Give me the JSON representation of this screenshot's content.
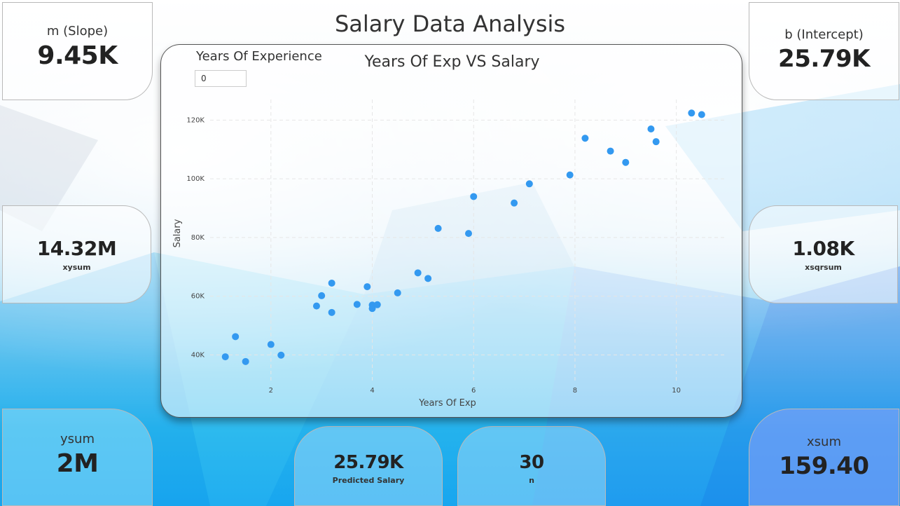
{
  "page": {
    "title": "Salary Data Analysis"
  },
  "cards": {
    "slope": {
      "label": "m (Slope)",
      "value": "9.45K"
    },
    "intercept": {
      "label": "b (Intercept)",
      "value": "25.79K"
    },
    "xysum": {
      "label": "xysum",
      "value": "14.32M"
    },
    "xsqrsum": {
      "label": "xsqrsum",
      "value": "1.08K"
    },
    "ysum": {
      "label": "ysum",
      "value": "2M"
    },
    "predicted": {
      "label": "Predicted Salary",
      "value": "25.79K"
    },
    "n": {
      "label": "n",
      "value": "30"
    },
    "xsum": {
      "label": "xsum",
      "value": "159.40"
    }
  },
  "slicer": {
    "label": "Years Of Experience",
    "value": "0"
  },
  "colors": {
    "point": "#3399f0",
    "grid": "#e6e6e6"
  },
  "chart_data": {
    "type": "scatter",
    "title": "Years Of Exp VS Salary",
    "xlabel": "Years Of Exp",
    "ylabel": "Salary",
    "xlim": [
      0.8,
      11.0
    ],
    "ylim": [
      31000,
      127000
    ],
    "x_ticks": [
      2,
      4,
      6,
      8,
      10
    ],
    "x_tick_labels": [
      "2",
      "4",
      "6",
      "8",
      "10"
    ],
    "y_ticks": [
      40000,
      60000,
      80000,
      100000,
      120000
    ],
    "y_tick_labels": [
      "40K",
      "60K",
      "80K",
      "100K",
      "120K"
    ],
    "grid": true,
    "x": [
      1.1,
      1.3,
      1.5,
      2.0,
      2.2,
      2.9,
      3.0,
      3.2,
      3.2,
      3.7,
      3.9,
      4.0,
      4.0,
      4.1,
      4.5,
      4.9,
      5.1,
      5.3,
      5.9,
      6.0,
      6.8,
      7.1,
      7.9,
      8.2,
      8.7,
      9.0,
      9.5,
      9.6,
      10.3,
      10.5
    ],
    "y": [
      39343,
      46205,
      37731,
      43525,
      39891,
      56642,
      60150,
      54445,
      64445,
      57189,
      63218,
      55794,
      56957,
      57081,
      61111,
      67938,
      66029,
      83088,
      81363,
      93940,
      91738,
      98273,
      101302,
      113812,
      109431,
      105582,
      116969,
      112635,
      122391,
      121872
    ]
  }
}
